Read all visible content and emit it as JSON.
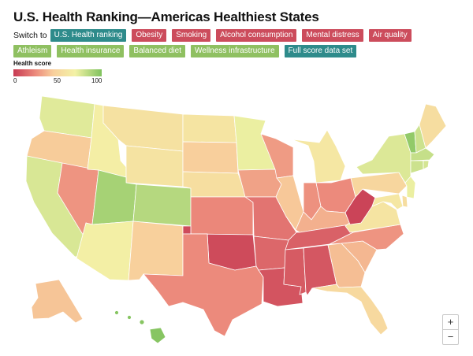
{
  "title": "U.S. Health Ranking—Americas Healthiest States",
  "switch_label": "Switch to",
  "buttons_row1": [
    {
      "label": "U.S. Health ranking",
      "color": "#2e8b8b"
    },
    {
      "label": "Obesity",
      "color": "#cc4c5c"
    },
    {
      "label": "Smoking",
      "color": "#cc4c5c"
    },
    {
      "label": "Alcohol consumption",
      "color": "#cc4c5c"
    },
    {
      "label": "Mental distress",
      "color": "#cc4c5c"
    },
    {
      "label": "Air quality",
      "color": "#cc4c5c"
    }
  ],
  "buttons_row2": [
    {
      "label": "Athleism",
      "color": "#8fc061"
    },
    {
      "label": "Health insurance",
      "color": "#8fc061"
    },
    {
      "label": "Balanced diet",
      "color": "#8fc061"
    },
    {
      "label": "Wellness infrastructure",
      "color": "#8fc061"
    },
    {
      "label": "Full score data set",
      "color": "#2e8b8b"
    }
  ],
  "legend": {
    "title": "Health score",
    "ticks": [
      "0",
      "50",
      "100"
    ],
    "colors": [
      "#c73b53",
      "#f8cf9c",
      "#7fc25d"
    ]
  },
  "zoom": {
    "in_label": "+",
    "out_label": "−"
  },
  "state_scores": {
    "WA": 75,
    "OR": 44,
    "CA": 77,
    "NV": 28,
    "ID": 67,
    "MT": 58,
    "WY": 59,
    "UT": 90,
    "AZ": 68,
    "CO": 86,
    "NM": 46,
    "ND": 60,
    "SD": 45,
    "NE": 56,
    "KS": 24,
    "OK": 5,
    "TX": 25,
    "MN": 72,
    "IA": 32,
    "MO": 18,
    "AR": 14,
    "LA": 8,
    "WI": 30,
    "IL": 43,
    "MI": 62,
    "IN": 27,
    "OH": 25,
    "KY": 36,
    "TN": 12,
    "MS": 10,
    "AL": 9,
    "GA": 40,
    "FL": 52,
    "SC": 38,
    "NC": 28,
    "VA": 60,
    "WV": 3,
    "PA": 50,
    "NY": 76,
    "VT": 95,
    "NH": 80,
    "ME": 55,
    "MA": 82,
    "CT": 80,
    "RI": 78,
    "NJ": 72,
    "DE": 55,
    "MD": 62,
    "AK": 42,
    "HI": 98
  }
}
